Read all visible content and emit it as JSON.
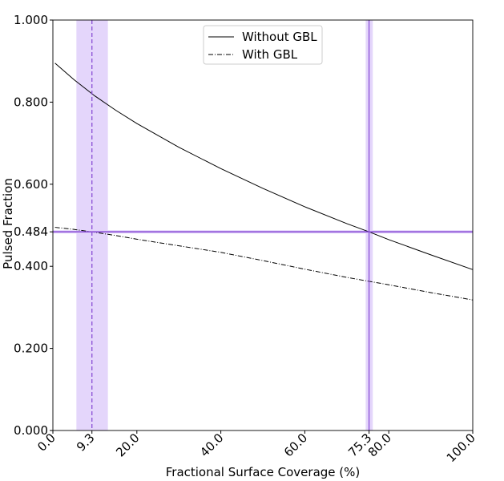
{
  "chart_data": {
    "type": "line",
    "xlabel": "Fractional Surface Coverage (%)",
    "ylabel": "Pulsed Fraction",
    "xlim": [
      0,
      100
    ],
    "ylim": [
      0,
      1
    ],
    "x_ticks": [
      0,
      9.3,
      20,
      40,
      60,
      75.3,
      80,
      100
    ],
    "x_tick_labels": [
      "0.0",
      "9.3",
      "20.0",
      "40.0",
      "60.0",
      "75.3",
      "80.0",
      "100.0"
    ],
    "y_ticks": [
      0,
      0.2,
      0.4,
      0.484,
      0.6,
      0.8,
      1.0
    ],
    "y_tick_labels": [
      "0.000",
      "0.200",
      "0.400",
      "0.484",
      "0.600",
      "0.800",
      "1.000"
    ],
    "legend_position": "top-center",
    "grid": false,
    "series": [
      {
        "name": "Without GBL",
        "style": "solid",
        "color": "#000000",
        "x": [
          0.5,
          5,
          10,
          15,
          20,
          30,
          40,
          50,
          60,
          70,
          75.3,
          80,
          90,
          100
        ],
        "y": [
          0.895,
          0.855,
          0.815,
          0.78,
          0.748,
          0.69,
          0.638,
          0.59,
          0.545,
          0.504,
          0.484,
          0.465,
          0.428,
          0.392
        ]
      },
      {
        "name": "With GBL",
        "style": "dashdot",
        "color": "#000000",
        "x": [
          0.5,
          5,
          9.3,
          15,
          20,
          30,
          40,
          50,
          60,
          70,
          80,
          90,
          100
        ],
        "y": [
          0.495,
          0.49,
          0.484,
          0.475,
          0.466,
          0.45,
          0.434,
          0.414,
          0.393,
          0.373,
          0.355,
          0.336,
          0.318
        ]
      }
    ],
    "reference_lines": {
      "horizontal": {
        "y": 0.484,
        "band": [
          0.48,
          0.488
        ],
        "color": "#8a4fd6"
      },
      "vertical": [
        {
          "x": 9.3,
          "band": [
            5.6,
            13.1
          ],
          "style": "dashed",
          "color": "#8a4fd6"
        },
        {
          "x": 75.3,
          "band": [
            74.5,
            76.2
          ],
          "style": "solid",
          "color": "#8a4fd6"
        }
      ],
      "band_color": "#e1d1fb"
    }
  }
}
